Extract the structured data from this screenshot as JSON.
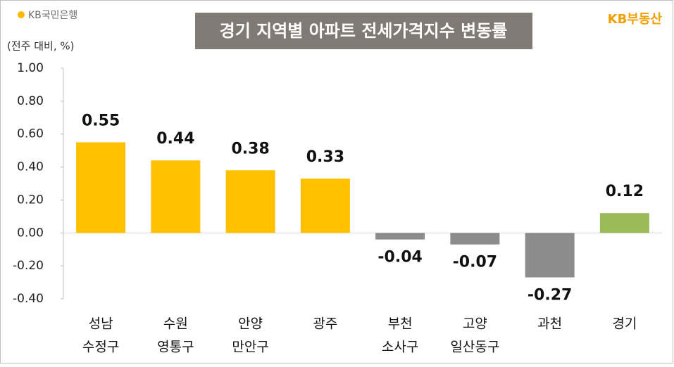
{
  "chart_data": {
    "type": "bar",
    "title": "경기 지역별 아파트 전세가격지수 변동률",
    "logo": "KB국민은행",
    "brand": "KB부동산",
    "unit_label": "(전주 대비, %)",
    "categories": [
      [
        "성남",
        "수정구"
      ],
      [
        "수원",
        "영통구"
      ],
      [
        "안양",
        "만안구"
      ],
      [
        "광주"
      ],
      [
        "부천",
        "소사구"
      ],
      [
        "고양",
        "일산동구"
      ],
      [
        "과천"
      ],
      [
        "경기"
      ]
    ],
    "values": [
      0.55,
      0.44,
      0.38,
      0.33,
      -0.04,
      -0.07,
      -0.27,
      0.12
    ],
    "colors": [
      "#ffc000",
      "#ffc000",
      "#ffc000",
      "#ffc000",
      "#8c8c8c",
      "#8c8c8c",
      "#8c8c8c",
      "#9bbb59"
    ],
    "ylim": [
      -0.4,
      1.0
    ],
    "yticks": [
      {
        "value": -0.4,
        "label": "-0.40"
      },
      {
        "value": -0.2,
        "label": "-0.20"
      },
      {
        "value": 0,
        "label": "0.00"
      },
      {
        "value": 0.2,
        "label": "0.20"
      },
      {
        "value": 0.4,
        "label": "0.40"
      },
      {
        "value": 0.6,
        "label": "0.60"
      },
      {
        "value": 0.8,
        "label": "0.80"
      },
      {
        "value": 1.0,
        "label": "1.00"
      }
    ],
    "grid": false
  }
}
